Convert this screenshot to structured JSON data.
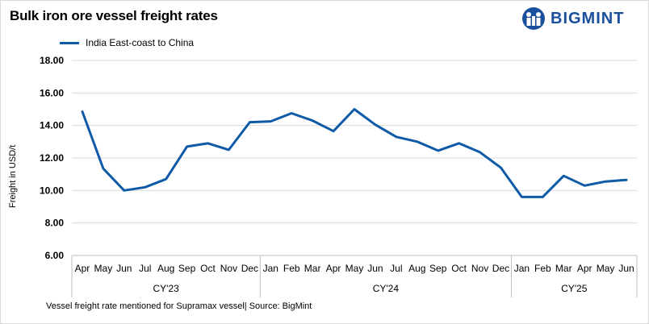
{
  "brand": {
    "name": "BIGMINT",
    "color": "#1a4f9c"
  },
  "chart_data": {
    "type": "line",
    "title": "Bulk iron ore vessel freight rates",
    "ylabel": "Freight in USD/t",
    "xlabel": "",
    "ylim": [
      6,
      18
    ],
    "yticks": [
      "6.00",
      "8.00",
      "10.00",
      "12.00",
      "14.00",
      "16.00",
      "18.00"
    ],
    "grid": true,
    "legend_position": "top-left",
    "categories": [
      "Apr",
      "May",
      "Jun",
      "Jul",
      "Aug",
      "Sep",
      "Oct",
      "Nov",
      "Dec",
      "Jan",
      "Feb",
      "Mar",
      "Apr",
      "May",
      "Jun",
      "Jul",
      "Aug",
      "Sep",
      "Oct",
      "Nov",
      "Dec",
      "Jan",
      "Feb",
      "Mar",
      "Apr",
      "May",
      "Jun"
    ],
    "groups": [
      {
        "label": "CY'23",
        "count": 9
      },
      {
        "label": "CY'24",
        "count": 12
      },
      {
        "label": "CY'25",
        "count": 6
      }
    ],
    "series": [
      {
        "name": "India East-coast to China",
        "color": "#0e5aa7",
        "values": [
          14.85,
          11.35,
          10.0,
          10.2,
          10.7,
          12.7,
          12.9,
          12.5,
          14.2,
          14.25,
          14.75,
          14.3,
          13.65,
          15.0,
          14.05,
          13.3,
          13.0,
          12.45,
          12.9,
          12.35,
          11.4,
          9.6,
          9.6,
          10.9,
          10.3,
          10.55,
          10.65
        ]
      }
    ],
    "footnote": "Vessel freight rate mentioned for Supramax vessel| Source: BigMint"
  }
}
